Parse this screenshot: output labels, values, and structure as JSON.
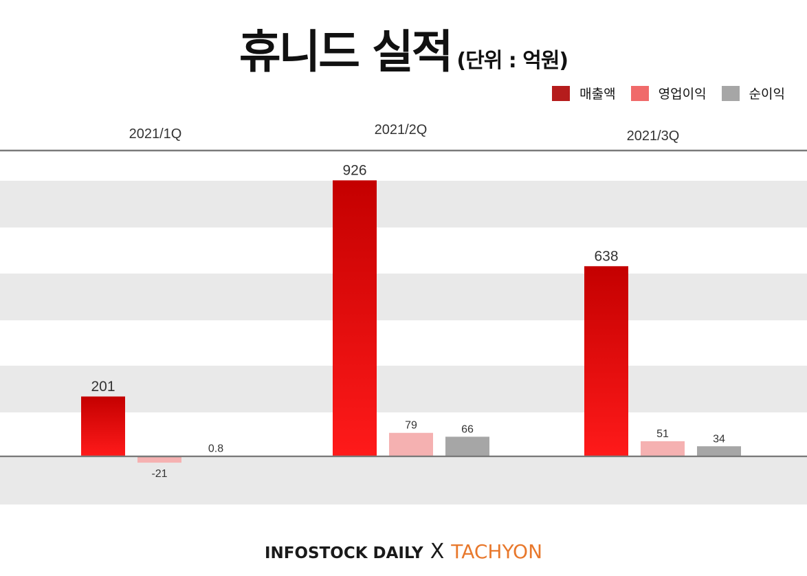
{
  "colors": {
    "revenue": "#b51c1c",
    "operating": "#f06a6a",
    "net": "#a6a6a6",
    "band": "#e9e9e9",
    "axis": "#7a7a7a"
  },
  "brand": {
    "left": "INFOSTOCK DAILY",
    "sep": "X",
    "right": "TACHYON"
  },
  "chart_data": {
    "type": "bar",
    "title": "휴니드 실적",
    "subtitle": "(단위 : 억원)",
    "categories": [
      "2021/1Q",
      "2021/2Q",
      "2021/3Q"
    ],
    "series": [
      {
        "name": "매출액",
        "values": [
          201,
          926,
          638
        ],
        "labels": [
          "201",
          "926",
          "638"
        ]
      },
      {
        "name": "영업이익",
        "values": [
          -21,
          79,
          51
        ],
        "labels": [
          "-21",
          "79",
          "51"
        ]
      },
      {
        "name": "순이익",
        "values": [
          0.8,
          66,
          34
        ],
        "labels": [
          "0.8",
          "66",
          "34"
        ]
      }
    ],
    "legend_position": "top-right",
    "grid": true
  }
}
